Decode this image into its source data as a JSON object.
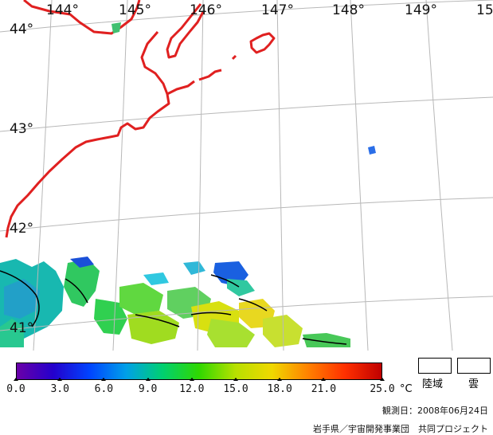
{
  "map": {
    "longitude_labels": [
      "144°",
      "145°",
      "146°",
      "147°",
      "148°",
      "149°",
      "15"
    ],
    "latitude_labels": [
      "44°",
      "43°",
      "42°",
      "41°"
    ],
    "colors": {
      "coastline": "#e02020",
      "graticule": "#b8b8b8",
      "contour": "#000000"
    }
  },
  "legend": {
    "ticks": [
      "0.0",
      "3.0",
      "6.0",
      "9.0",
      "12.0",
      "15.0",
      "18.0",
      "21.0",
      "25.0"
    ],
    "tick_values": [
      0,
      3,
      6,
      9,
      12,
      15,
      18,
      21,
      25
    ],
    "range": [
      0,
      25
    ],
    "unit": "°C",
    "land_label": "陸域",
    "cloud_label": "雲",
    "gradient_colors": [
      "#6a00a8",
      "#2400cc",
      "#0044ff",
      "#00a0e8",
      "#00d070",
      "#30d800",
      "#b8e000",
      "#f0d800",
      "#ff8000",
      "#ff3000",
      "#c00000"
    ]
  },
  "footer": {
    "date": "観測日：2008年06月24日",
    "credit": "岩手県／宇宙開発事業団　共同プロジェクト"
  }
}
